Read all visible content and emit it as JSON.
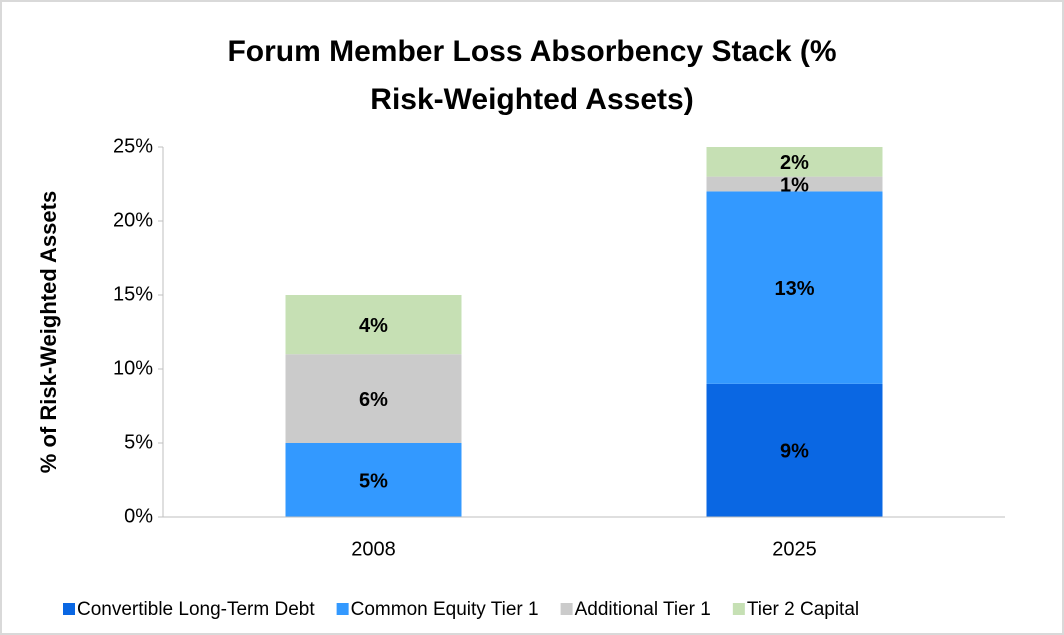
{
  "chart_data": {
    "type": "stacked_bar",
    "title": "Forum Member Loss Absorbency Stack (% Risk-Weighted Assets)",
    "y_label": "% of Risk-Weighted Assets",
    "categories": [
      "2008",
      "2025"
    ],
    "series": [
      {
        "name": "Convertible Long-Term Debt",
        "color": "#0a67e3",
        "values": [
          null,
          9
        ],
        "value_labels": [
          null,
          "9%"
        ]
      },
      {
        "name": "Common Equity Tier 1",
        "color": "#3399ff",
        "values": [
          5,
          13
        ],
        "value_labels": [
          "5%",
          "13%"
        ]
      },
      {
        "name": "Additional Tier 1",
        "color": "#cbcbcb",
        "values": [
          6,
          1
        ],
        "value_labels": [
          "6%",
          "1%"
        ]
      },
      {
        "name": "Tier 2 Capital",
        "color": "#c6e0b4",
        "values": [
          4,
          2
        ],
        "value_labels": [
          "4%",
          "2%"
        ]
      }
    ],
    "ylim": [
      0,
      25
    ],
    "yticks": [
      {
        "value": 0,
        "label": "0%"
      },
      {
        "value": 5,
        "label": "5%"
      },
      {
        "value": 10,
        "label": "10%"
      },
      {
        "value": 15,
        "label": "15%"
      },
      {
        "value": 20,
        "label": "20%"
      },
      {
        "value": 25,
        "label": "25%"
      }
    ],
    "legend": "bottom"
  }
}
